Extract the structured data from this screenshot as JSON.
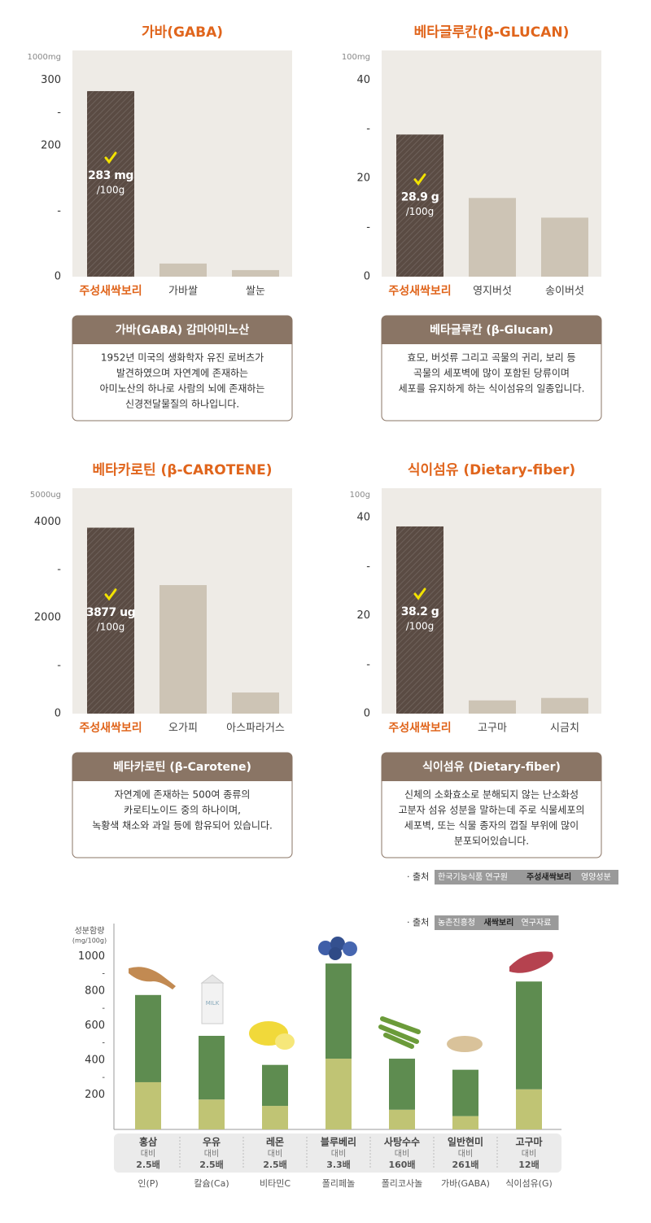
{
  "chart_data": [
    {
      "type": "bar",
      "title": "가바(GABA)",
      "unit_label": "1000mg",
      "categories": [
        "주성새싹보리",
        "가바쌀",
        "쌀눈"
      ],
      "values": [
        283,
        20,
        10
      ],
      "value_labels": [
        "283 mg",
        null,
        null
      ],
      "value_label_unit": "/100g",
      "colors": [
        "#5a4b43",
        "#cdc4b5",
        "#cdc4b5"
      ],
      "ylim": [
        0,
        345
      ],
      "yticks": [
        0,
        {
          "value": 100,
          "label": "-"
        },
        200,
        {
          "value": 250,
          "label": "-"
        },
        300
      ],
      "note_title": "가바(GABA) 감마아미노산",
      "note_lines": [
        "1952년 미국의 생화학자 유진 로버츠가",
        "발견하였으며 자연계에 존재하는",
        "아미노산의 하나로 사람의 뇌에 존재하는",
        "신경전달물질의 하나입니다."
      ]
    },
    {
      "type": "bar",
      "title": "베타글루칸(β-GLUCAN)",
      "unit_label": "100mg",
      "categories": [
        "주성새싹보리",
        "영지버섯",
        "송이버섯"
      ],
      "values": [
        28.9,
        16,
        12
      ],
      "value_labels": [
        "28.9 g",
        null,
        null
      ],
      "value_label_unit": "/100g",
      "colors": [
        "#5a4b43",
        "#cdc4b5",
        "#cdc4b5"
      ],
      "ylim": [
        0,
        46
      ],
      "yticks": [
        0,
        {
          "value": 10,
          "label": "-"
        },
        20,
        {
          "value": 30,
          "label": "-"
        },
        40
      ],
      "note_title": "베타글루칸 (β-Glucan)",
      "note_lines": [
        "효모, 버섯류 그리고 곡물의 귀리, 보리 등",
        "곡물의 세포벽에 많이 포함된 당류이며",
        "세포를 유지하게 하는 식이섬유의 일종입니다."
      ]
    },
    {
      "type": "bar",
      "title": "베타카로틴 (β-CAROTENE)",
      "unit_label": "5000ug",
      "categories": [
        "주성새싹보리",
        "오가피",
        "아스파라거스"
      ],
      "values": [
        3877,
        2680,
        440
      ],
      "value_labels": [
        "3877 ug",
        null,
        null
      ],
      "value_label_unit": "/100g",
      "colors": [
        "#5a4b43",
        "#cdc4b5",
        "#cdc4b5"
      ],
      "ylim": [
        0,
        4700
      ],
      "yticks": [
        0,
        {
          "value": 1000,
          "label": "-"
        },
        2000,
        {
          "value": 3000,
          "label": "-"
        },
        4000
      ],
      "note_title": "베타카로틴 (β-Carotene)",
      "note_lines": [
        "자연계에 존재하는 500여 종류의",
        "카로티노이드 중의 하나이며,",
        "녹황색 채소와 과일 등에 함유되어 있습니다."
      ]
    },
    {
      "type": "bar",
      "title": "식이섬유 (Dietary-fiber)",
      "unit_label": "100g",
      "categories": [
        "주성새싹보리",
        "고구마",
        "시금치"
      ],
      "values": [
        38.2,
        2.7,
        3.2
      ],
      "value_labels": [
        "38.2 g",
        null,
        null
      ],
      "value_label_unit": "/100g",
      "colors": [
        "#5a4b43",
        "#cdc4b5",
        "#cdc4b5"
      ],
      "ylim": [
        0,
        46
      ],
      "yticks": [
        0,
        {
          "value": 10,
          "label": "-"
        },
        20,
        {
          "value": 30,
          "label": "-"
        },
        40
      ],
      "note_title": "식이섬유 (Dietary-fiber)",
      "note_lines": [
        "신체의 소화효소로 분해되지 않는 난소화성",
        "고분자 섬유 성분을 말하는데 주로 식물세포의",
        "세포벽, 또는 식물 종자의 껍질 부위에 많이",
        "분포되어있습니다."
      ]
    },
    {
      "type": "stacked_bar",
      "y_label": [
        "성분함량",
        "(mg/100g)"
      ],
      "categories": [
        "홍삼",
        "우유",
        "레몬",
        "블루베리",
        "사탕수수",
        "일반현미",
        "고구마"
      ],
      "compare_labels": [
        "대비",
        "대비",
        "대비",
        "대비",
        "대비",
        "대비",
        "대비"
      ],
      "ratio_labels": [
        "2.5배",
        "2.5배",
        "2.5배",
        "3.3배",
        "160배",
        "261배",
        "12배"
      ],
      "nutrients": [
        "인(P)",
        "칼슘(Ca)",
        "비타민C",
        "폴리페놀",
        "폴리코사놀",
        "가바(GABA)",
        "식이섬유(G)"
      ],
      "series": [
        {
          "color": "#c0c474",
          "values": [
            273,
            173,
            136,
            409,
            114,
            77,
            232
          ]
        },
        {
          "color": "#5e8c50",
          "values": [
            504,
            368,
            237,
            550,
            295,
            268,
            623
          ]
        }
      ],
      "ylim": [
        0,
        1190
      ],
      "yticks": [
        200,
        {
          "value": 300,
          "label": "-"
        },
        400,
        {
          "value": 500,
          "label": "-"
        },
        600,
        {
          "value": 700,
          "label": "-"
        },
        800,
        {
          "value": 900,
          "label": "-"
        },
        1000
      ],
      "source": {
        "prefix": "· 출처",
        "parts": [
          "농촌진흥청",
          "새싹보리",
          "연구자료"
        ]
      }
    }
  ],
  "source_note": {
    "prefix": "· 출처",
    "parts": [
      "한국기능식품 연구원",
      "주성새싹보리",
      "영양성분"
    ]
  }
}
